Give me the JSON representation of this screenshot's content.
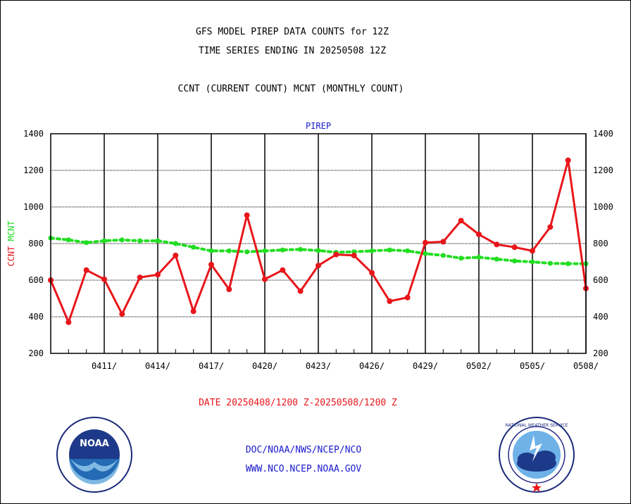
{
  "header": {
    "title": "GFS MODEL PIREP DATA COUNTS for 12Z",
    "subtitle": "TIME SERIES ENDING IN 20250508 12Z",
    "legend_text": "CCNT (CURRENT COUNT) MCNT (MONTHLY COUNT)"
  },
  "footer": {
    "date_range": "DATE 20250408/1200 Z-20250508/1200 Z",
    "org": "DOC/NOAA/NWS/NCEP/NCO",
    "url": "WWW.NCO.NCEP.NOAA.GOV"
  },
  "logos": {
    "left": "NOAA",
    "right": "NATIONAL WEATHER SERVICE"
  },
  "colors": {
    "ccnt": "#e8161b",
    "mcnt": "#22dd22",
    "axis_label_blue": "#1a1acf"
  },
  "chart_data": {
    "type": "line",
    "title": "PIREP",
    "ylabel_series": [
      "CCNT",
      "MCNT"
    ],
    "ylim": [
      200,
      1400
    ],
    "yticks": [
      200,
      400,
      600,
      800,
      1000,
      1200,
      1400
    ],
    "xticks": [
      "0411/",
      "0414/",
      "0417/",
      "0420/",
      "0423/",
      "0426/",
      "0429/",
      "0502/",
      "0505/",
      "0508/"
    ],
    "x": [
      "0408",
      "0409",
      "0410",
      "0411",
      "0412",
      "0413",
      "0414",
      "0415",
      "0416",
      "0417",
      "0418",
      "0419",
      "0420",
      "0421",
      "0422",
      "0423",
      "0424",
      "0425",
      "0426",
      "0427",
      "0428",
      "0429",
      "0430",
      "0501",
      "0502",
      "0503",
      "0504",
      "0505",
      "0506",
      "0507",
      "0508"
    ],
    "series": [
      {
        "name": "CCNT",
        "color": "#e8161b",
        "values": [
          600,
          370,
          655,
          605,
          415,
          615,
          630,
          735,
          430,
          685,
          550,
          955,
          605,
          655,
          540,
          680,
          740,
          735,
          640,
          485,
          505,
          805,
          810,
          925,
          850,
          795,
          780,
          760,
          890,
          1255,
          555
        ]
      },
      {
        "name": "MCNT",
        "color": "#22dd22",
        "values": [
          830,
          820,
          805,
          815,
          820,
          815,
          815,
          800,
          780,
          760,
          760,
          755,
          760,
          765,
          768,
          762,
          752,
          755,
          760,
          765,
          760,
          745,
          735,
          720,
          725,
          715,
          705,
          700,
          692,
          690,
          690
        ]
      }
    ],
    "grid": true
  }
}
